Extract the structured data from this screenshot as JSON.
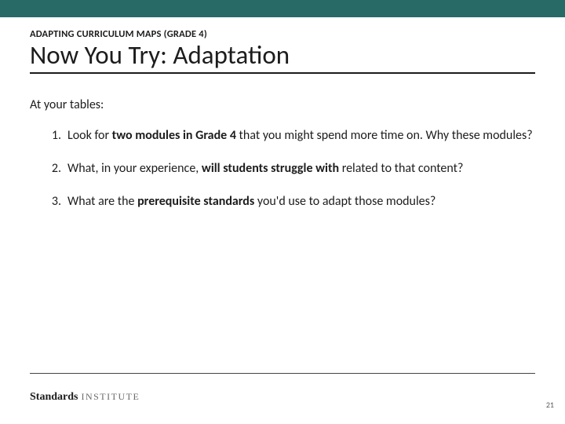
{
  "colors": {
    "top_bar": "#276a66",
    "text": "#1c1c1c",
    "rule": "#1c1c1c",
    "footer_rule": "#444444",
    "logo_light": "#6a6a6a",
    "pagenum": "#555555",
    "background": "#ffffff"
  },
  "typography": {
    "body_family": "Calibri",
    "logo_family": "Georgia",
    "eyebrow_size_pt": 9,
    "title_size_pt": 25,
    "body_size_pt": 12,
    "logo_strong_size_pt": 11,
    "logo_light_size_pt": 9
  },
  "eyebrow": "ADAPTING CURRICULUM MAPS (GRADE 4)",
  "title": "Now You Try: Adaptation",
  "intro": "At your tables:",
  "items": [
    {
      "pre": "Look for ",
      "bold": "two modules in Grade 4",
      "post": " that you might spend more time on. Why these modules?"
    },
    {
      "pre": "What, in your experience, ",
      "bold": "will students struggle with",
      "post": " related to that content?"
    },
    {
      "pre": "What are the ",
      "bold": "prerequisite standards",
      "post": " you'd use to adapt those modules?"
    }
  ],
  "logo": {
    "strong": "Standards",
    "light": "INSTITUTE"
  },
  "page_number": "21"
}
